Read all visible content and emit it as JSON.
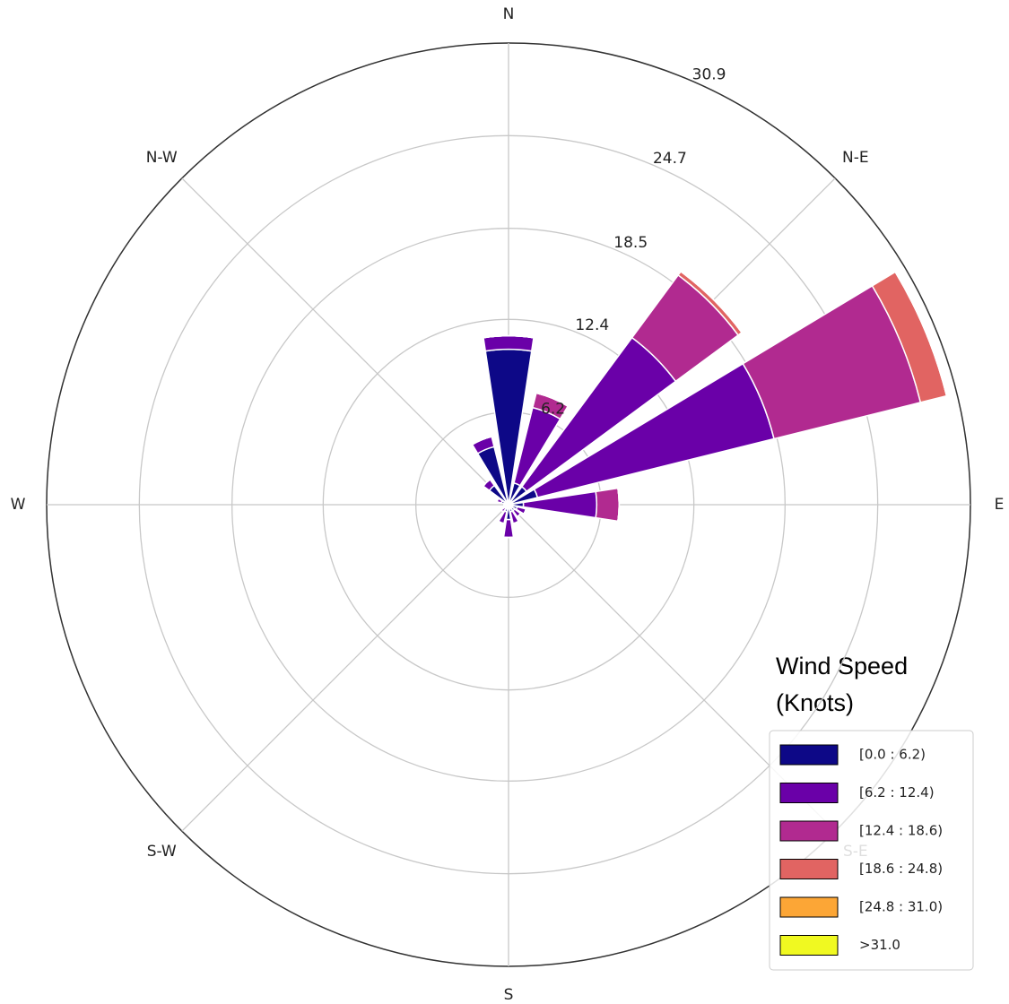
{
  "chart_data": {
    "type": "windrose",
    "categories": [
      "N",
      null,
      "N-E",
      null,
      "E",
      null,
      "S-E",
      null,
      "S",
      null,
      "S-W",
      null,
      "W",
      null,
      "N-W",
      null
    ],
    "series": [
      {
        "name": "[0.0 : 6.2)",
        "color": "#0d0887",
        "values": [
          10.4,
          1.5,
          1.5,
          2.0,
          1.0,
          0.6,
          0.5,
          0.5,
          1.0,
          0.5,
          0.3,
          0.3,
          0.3,
          0.5,
          1.6,
          4.0
        ]
      },
      {
        "name": "[6.2 : 12.4)",
        "color": "#6a00a8",
        "values": [
          0.9,
          5.2,
          12.4,
          16.3,
          4.9,
          0.6,
          0.5,
          0.8,
          1.2,
          0.8,
          0.3,
          0,
          0,
          0.3,
          0.5,
          0.7
        ]
      },
      {
        "name": "[12.4 : 18.6)",
        "color": "#b12a90",
        "values": [
          0,
          1.0,
          5.2,
          10.1,
          1.5,
          0,
          0,
          0,
          0,
          0,
          0,
          0,
          0,
          0,
          0,
          0
        ]
      },
      {
        "name": "[18.6 : 24.8)",
        "color": "#e16462",
        "values": [
          0,
          0,
          0.3,
          1.8,
          0,
          0,
          0,
          0,
          0,
          0,
          0,
          0,
          0,
          0,
          0,
          0
        ]
      },
      {
        "name": "[24.8 : 31.0)",
        "color": "#fca636",
        "values": [
          0,
          0,
          0,
          0,
          0,
          0,
          0,
          0,
          0,
          0,
          0,
          0,
          0,
          0,
          0,
          0
        ]
      },
      {
        "name": ">31.0",
        "color": "#f0f921",
        "values": [
          0,
          0,
          0,
          0,
          0,
          0,
          0,
          0,
          0,
          0,
          0,
          0,
          0,
          0,
          0,
          0
        ]
      }
    ],
    "ylim": [
      0,
      30.9
    ],
    "yticks": [
      6.2,
      12.4,
      18.5,
      24.7,
      30.9
    ],
    "grid": true,
    "legend_title": [
      "Wind Speed",
      "(Knots)"
    ],
    "legend": "lower right"
  }
}
